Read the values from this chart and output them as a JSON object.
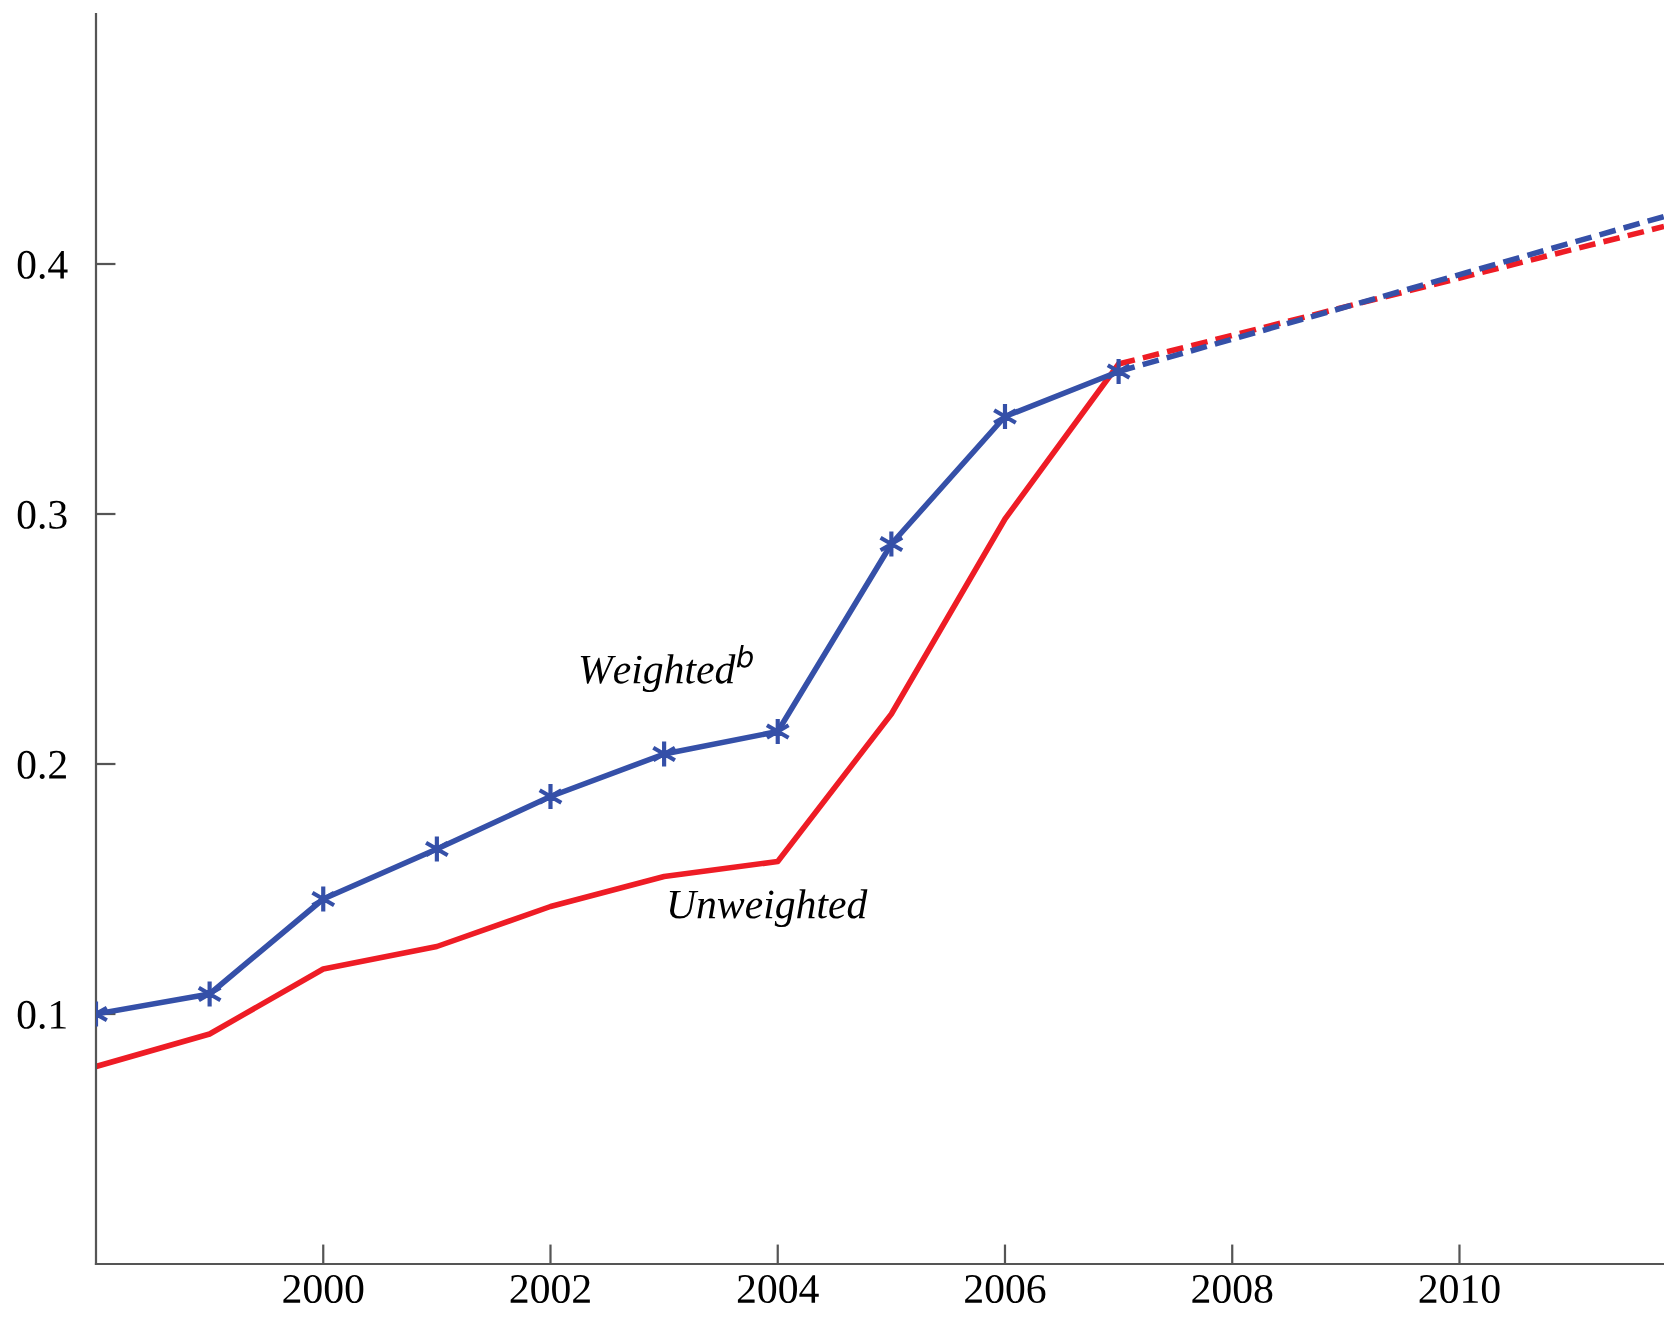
{
  "chart_data": {
    "type": "line",
    "xlim": [
      1998,
      2011.8
    ],
    "xticks": [
      2000,
      2002,
      2004,
      2006,
      2008,
      2010
    ],
    "ylim": [
      0,
      0.5
    ],
    "yticks": [
      0.1,
      0.2,
      0.3,
      0.4
    ],
    "grid": false,
    "legend": false,
    "series": [
      {
        "name": "Weighted$^{b}$",
        "color": "#3550a8",
        "marker": "cross",
        "line_style": "solid",
        "x": [
          1998,
          1999,
          2000,
          2001,
          2002,
          2003,
          2004,
          2005,
          2006,
          2007
        ],
        "values": [
          0.1,
          0.108,
          0.146,
          0.166,
          0.187,
          0.204,
          0.213,
          0.288,
          0.339,
          0.357
        ]
      },
      {
        "name": "Unweighted",
        "color": "#ee1c25",
        "marker": "none",
        "line_style": "solid",
        "x": [
          1998,
          1999,
          2000,
          2001,
          2002,
          2003,
          2004,
          2005,
          2006,
          2007
        ],
        "values": [
          0.079,
          0.092,
          0.118,
          0.127,
          0.143,
          0.155,
          0.161,
          0.22,
          0.298,
          0.36
        ]
      },
      {
        "color": "#ee1c25",
        "marker": "none",
        "line_style": "dashed",
        "x": [
          2007,
          2011.8
        ],
        "values": [
          0.36,
          0.415
        ]
      },
      {
        "color": "#3550a8",
        "marker": "none",
        "line_style": "dashed",
        "x": [
          2007,
          2011.8
        ],
        "values": [
          0.357,
          0.419
        ]
      }
    ]
  }
}
